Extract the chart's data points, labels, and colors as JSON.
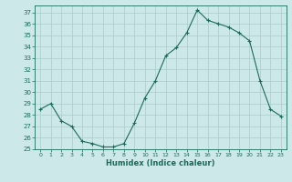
{
  "x": [
    0,
    1,
    2,
    3,
    4,
    5,
    6,
    7,
    8,
    9,
    10,
    11,
    12,
    13,
    14,
    15,
    16,
    17,
    18,
    19,
    20,
    21,
    22,
    23
  ],
  "y": [
    28.5,
    29.0,
    27.5,
    27.0,
    25.7,
    25.5,
    25.2,
    25.2,
    25.5,
    27.3,
    29.5,
    31.0,
    33.2,
    33.9,
    35.2,
    37.2,
    36.3,
    36.0,
    35.7,
    35.2,
    34.5,
    31.0,
    28.5,
    27.9
  ],
  "title": "",
  "xlabel": "Humidex (Indice chaleur)",
  "ylabel": "",
  "xlim": [
    -0.5,
    23.5
  ],
  "ylim": [
    25,
    37.6
  ],
  "yticks": [
    25,
    26,
    27,
    28,
    29,
    30,
    31,
    32,
    33,
    34,
    35,
    36,
    37
  ],
  "xticks": [
    0,
    1,
    2,
    3,
    4,
    5,
    6,
    7,
    8,
    9,
    10,
    11,
    12,
    13,
    14,
    15,
    16,
    17,
    18,
    19,
    20,
    21,
    22,
    23
  ],
  "line_color": "#1a6b5a",
  "marker": "+",
  "bg_color": "#cce8e8",
  "grid_color": "#aacccc"
}
